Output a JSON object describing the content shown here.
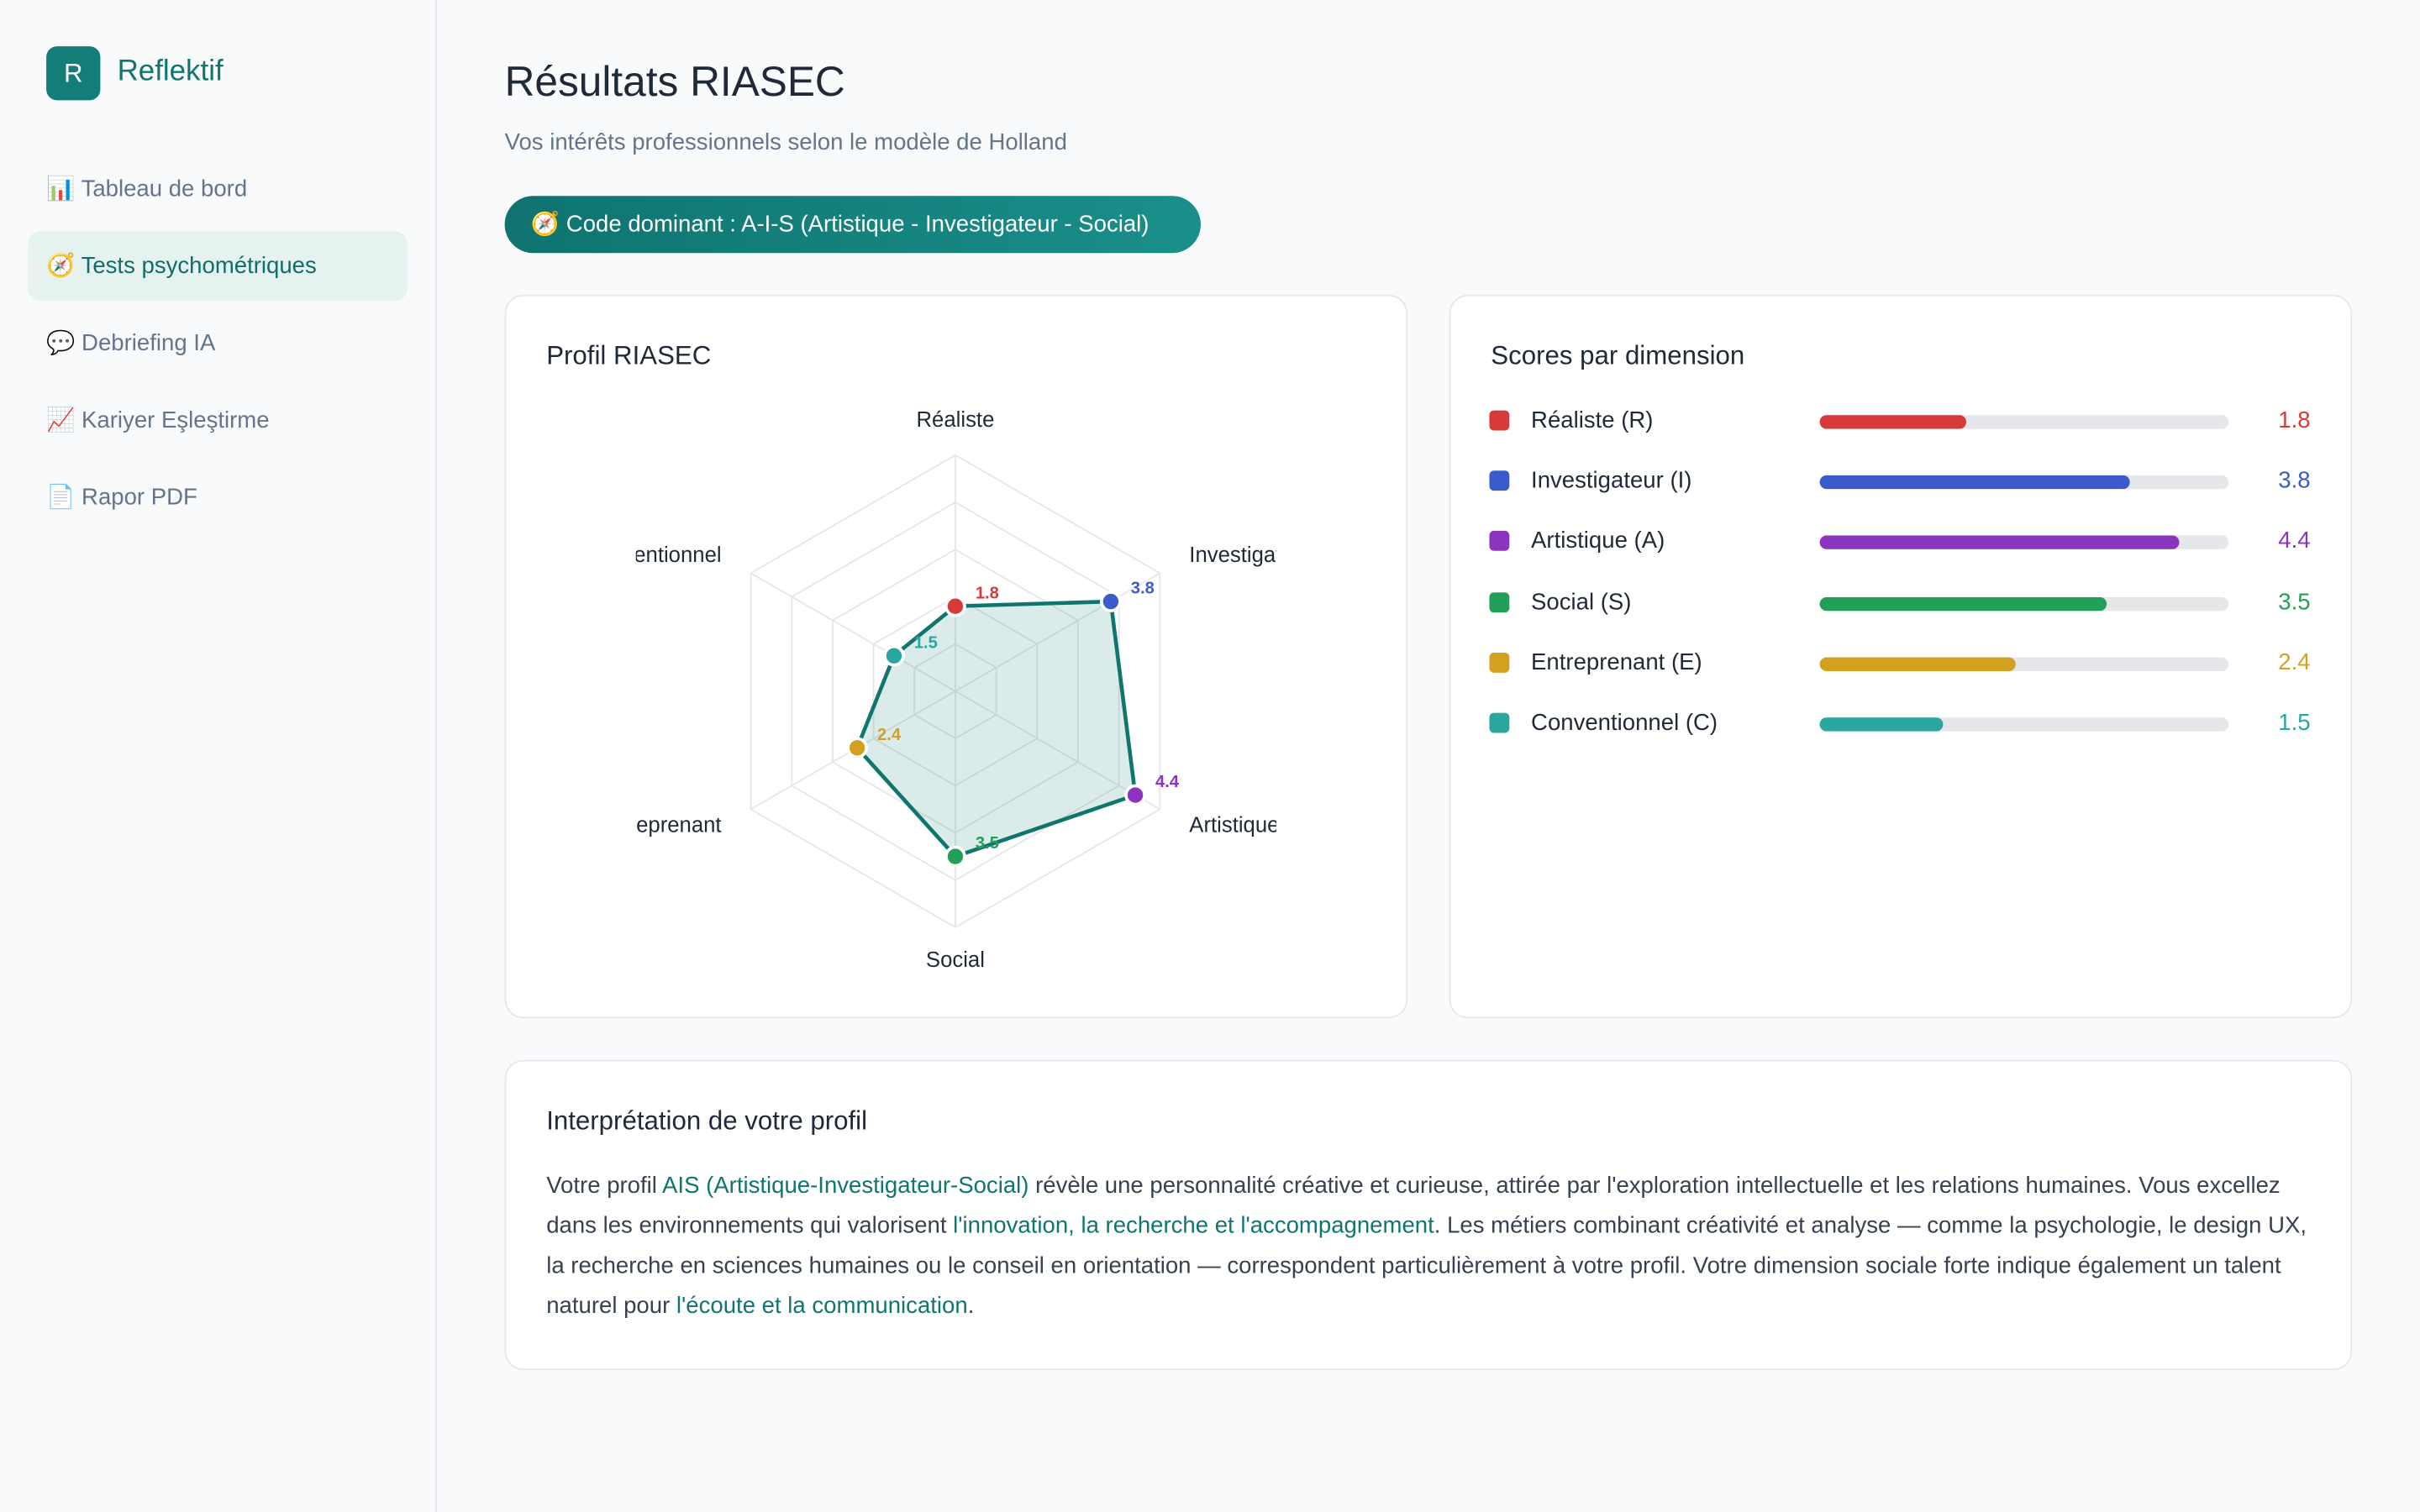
{
  "brand": {
    "logo": "R",
    "name": "Reflektif"
  },
  "nav": [
    "📊 Tableau de bord",
    "🧭 Tests psychométriques",
    "💬 Debriefing IA",
    "📈 Kariyer Eşleştirme",
    "📄 Rapor PDF"
  ],
  "nav_active": 1,
  "header": {
    "title": "Résultats RIASEC",
    "subtitle": "Vos intérêts professionnels selon le modèle de Holland",
    "badge": "🧭 Code dominant : A-I-S (Artistique - Investigateur - Social)"
  },
  "chart_data": {
    "type": "radar",
    "title": "Profil RIASEC",
    "categories": [
      "Réaliste",
      "Investigateur",
      "Artistique",
      "Social",
      "Entreprenant",
      "Conventionnel"
    ],
    "values": [
      1.8,
      3.8,
      4.4,
      3.5,
      2.4,
      1.5
    ],
    "colors": [
      "#d63a3a",
      "#3b5bcc",
      "#8b34c0",
      "#22a05a",
      "#d4a020",
      "#2aa6a0"
    ],
    "line_color": "#0f766e",
    "rlim": [
      0,
      5
    ],
    "grid_levels": 5
  },
  "scores": {
    "title": "Scores par dimension",
    "labels": [
      "Réaliste (R)",
      "Investigateur (I)",
      "Artistique (A)",
      "Social (S)",
      "Entreprenant (E)",
      "Conventionnel (C)"
    ]
  },
  "interpretation": {
    "title": "Interprétation de votre profil",
    "segments": [
      {
        "text": "Votre profil ",
        "highlight": false
      },
      {
        "text": "AIS (Artistique-Investigateur-Social)",
        "highlight": true
      },
      {
        "text": " révèle une personnalité créative et curieuse, attirée par l'exploration intellectuelle et les relations humaines. Vous excellez dans les environnements qui valorisent ",
        "highlight": false
      },
      {
        "text": "l'innovation, la recherche et l'accompagnement",
        "highlight": true
      },
      {
        "text": ". Les métiers combinant créativité et analyse — comme la psychologie, le design UX, la recherche en sciences humaines ou le conseil en orientation — correspondent particulièrement à votre profil. Votre dimension sociale forte indique également un talent naturel pour ",
        "highlight": false
      },
      {
        "text": "l'écoute et la communication",
        "highlight": true
      },
      {
        "text": ".",
        "highlight": false
      }
    ]
  }
}
